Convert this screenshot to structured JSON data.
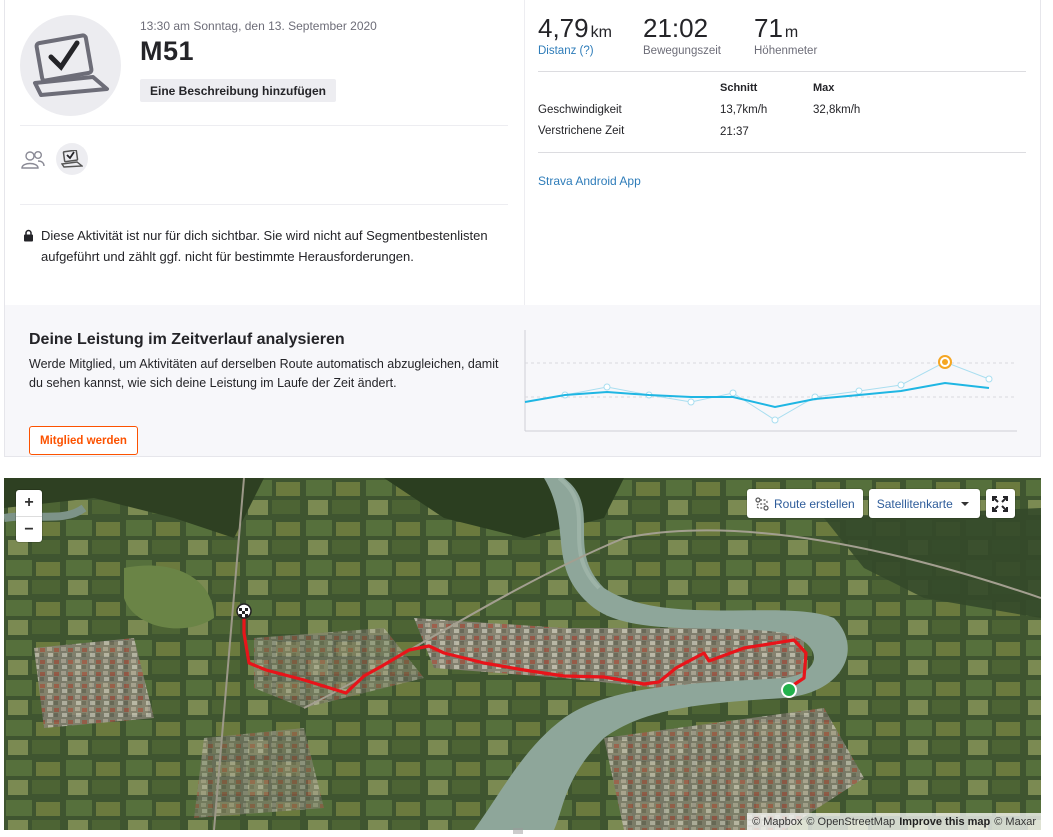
{
  "activity": {
    "datetime": "13:30 am Sonntag, den 13. September 2020",
    "title": "M51",
    "add_description": "Eine Beschreibung hinzufügen",
    "privacy_note": "Diese Aktivität ist nur für dich sichtbar. Sie wird nicht auf Segmentbestenlisten aufgeführt und zählt ggf. nicht für bestimmte Herausforderungen."
  },
  "stats": {
    "distance": {
      "value": "4,79",
      "unit": "km",
      "label": "Distanz (?)"
    },
    "moving_time": {
      "value": "21:02",
      "label": "Bewegungszeit"
    },
    "elevation": {
      "value": "71",
      "unit": "m",
      "label": "Höhenmeter"
    }
  },
  "details": {
    "col_avg": "Schnitt",
    "col_max": "Max",
    "rows": [
      {
        "label": "Geschwindigkeit",
        "avg": "13,7km/h",
        "max": "32,8km/h"
      },
      {
        "label": "Verstrichene Zeit",
        "avg": "21:37",
        "max": ""
      }
    ]
  },
  "device_link": "Strava Android App",
  "upsell": {
    "title": "Deine Leistung im Zeitverlauf analysieren",
    "text": "Werde Mitglied, um Aktivitäten auf derselben Route automatisch abzugleichen, damit du sehen kannst, wie sich deine Leistung im Laufe der Zeit ändert.",
    "button": "Mitglied werden"
  },
  "map": {
    "zoom_in": "+",
    "zoom_out": "−",
    "route_btn": "Route erstellen",
    "layer_btn": "Satellitenkarte",
    "attribution": {
      "mapbox": "© Mapbox",
      "osm": "© OpenStreetMap",
      "improve": "Improve this map",
      "maxar": "© Maxar"
    }
  },
  "colors": {
    "accent": "#fc5200",
    "link": "#2e7cb9",
    "route": "#e8141a",
    "trend": "#1fb6e3",
    "highlight": "#f5a623"
  }
}
